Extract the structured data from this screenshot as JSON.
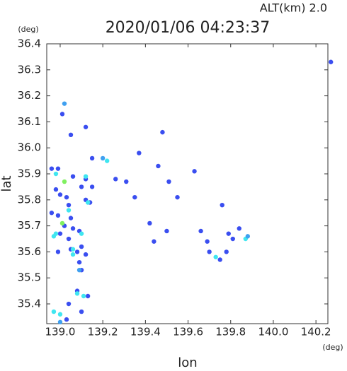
{
  "chart_data": {
    "type": "scatter",
    "title": "2020/01/06 04:23:37",
    "subtitle": "ALT(km) 2.0",
    "x_label": "lon",
    "y_label": "lat",
    "x_unit": "(deg)",
    "y_unit": "(deg)",
    "xlim": [
      138.937,
      140.256
    ],
    "ylim": [
      35.324,
      36.4
    ],
    "xticks": [
      {
        "value": 139,
        "label": "139.0"
      },
      139.2,
      139.4,
      139.6,
      139.8,
      {
        "value": 140,
        "label": "140.0"
      },
      140.2
    ],
    "yticks": [
      35.4,
      35.5,
      35.6,
      35.7,
      35.8,
      35.9,
      {
        "value": 36,
        "label": "36.0"
      },
      36.1,
      36.2,
      36.3,
      36.4
    ],
    "series": [
      {
        "name": "blue",
        "color": "#3a4ef0",
        "x": [
          139.01,
          139.12,
          139.05,
          138.96,
          138.99,
          139.06,
          139.12,
          139.15,
          139.1,
          138.98,
          139.0,
          139.03,
          139.12,
          139.14,
          139.04,
          138.96,
          138.99,
          139.05,
          139.02,
          139.06,
          139.09,
          139.0,
          139.04,
          139.1,
          139.05,
          139.08,
          139.12,
          138.99,
          139.09,
          139.1,
          139.08,
          139.13,
          139.04,
          139.1,
          139.03,
          139.15,
          139.31,
          139.37,
          139.46,
          139.48,
          139.51,
          139.55,
          139.63,
          139.42,
          139.5,
          139.66,
          139.69,
          139.76,
          139.78,
          139.81,
          139.84,
          139.79,
          139.75,
          139.7,
          140.27,
          139.26,
          139.44,
          139.35
        ],
        "values": [
          36.13,
          36.08,
          36.05,
          35.92,
          35.92,
          35.89,
          35.88,
          35.85,
          35.85,
          35.84,
          35.82,
          35.81,
          35.8,
          35.79,
          35.78,
          35.75,
          35.74,
          35.73,
          35.7,
          35.69,
          35.68,
          35.67,
          35.65,
          35.62,
          35.61,
          35.6,
          35.59,
          35.6,
          35.56,
          35.53,
          35.45,
          35.43,
          35.4,
          35.37,
          35.34,
          35.96,
          35.87,
          35.98,
          35.93,
          36.06,
          35.87,
          35.81,
          35.91,
          35.71,
          35.68,
          35.68,
          35.64,
          35.78,
          35.6,
          35.65,
          35.69,
          35.67,
          35.57,
          35.6,
          36.33,
          35.88,
          35.64,
          35.81
        ]
      },
      {
        "name": "cyan",
        "color": "#40e6f0",
        "x": [
          139.22,
          139.12,
          139.1,
          138.98,
          138.97,
          139.06,
          139.08,
          139.11,
          138.97,
          139.0,
          138.98,
          139.04,
          139.87,
          139.73,
          139.13,
          139.06
        ],
        "values": [
          35.95,
          35.89,
          35.67,
          35.67,
          35.66,
          35.61,
          35.44,
          35.43,
          35.37,
          35.36,
          35.9,
          35.76,
          35.65,
          35.58,
          35.79,
          35.59
        ]
      },
      {
        "name": "light-blue",
        "color": "#3fa0f0",
        "x": [
          139.02,
          139.09,
          139.0,
          139.88,
          139.2
        ],
        "values": [
          36.17,
          35.53,
          35.33,
          35.66,
          35.96
        ]
      },
      {
        "name": "green",
        "color": "#80f060",
        "x": [
          139.02,
          139.01
        ],
        "values": [
          35.87,
          35.71
        ]
      }
    ]
  }
}
